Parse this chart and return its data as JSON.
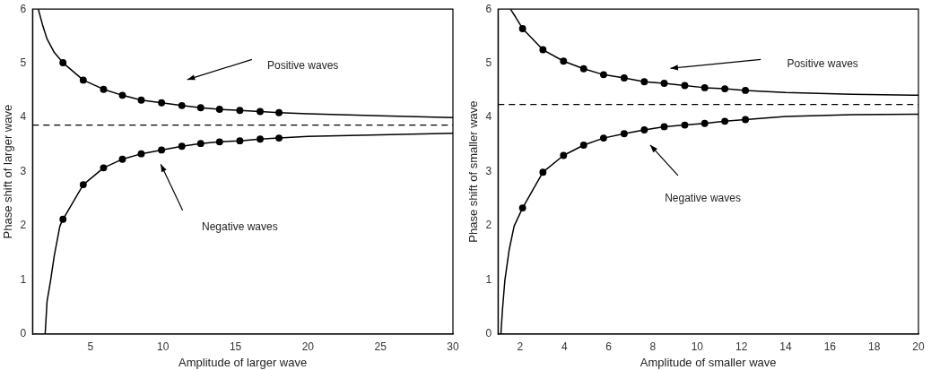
{
  "chart_data": [
    {
      "type": "line",
      "xlabel": "Amplitude of larger wave",
      "ylabel": "Phase shift of larger wave",
      "xlim": [
        1,
        30
      ],
      "xticks": [
        5,
        10,
        15,
        20,
        25,
        30
      ],
      "ylim": [
        0,
        6
      ],
      "yticks": [
        0,
        1,
        2,
        3,
        4,
        5,
        6
      ],
      "grid": false,
      "legend": false,
      "series": [
        {
          "marker": "none",
          "color": "#000000",
          "x": [
            1.4,
            1.7,
            2,
            2.5,
            3.1,
            4.5,
            5.9,
            7.2,
            8.5,
            9.9,
            11.3,
            12.6,
            13.9,
            15.3,
            16.7,
            18.0,
            20,
            25,
            30
          ],
          "values": [
            6,
            5.7,
            5.45,
            5.2,
            5.01,
            4.69,
            4.52,
            4.41,
            4.32,
            4.27,
            4.22,
            4.18,
            4.15,
            4.13,
            4.11,
            4.09,
            4.07,
            4.03,
            4.0
          ]
        },
        {
          "type": "scatter",
          "marker": "circle",
          "color": "#000000",
          "x": [
            3.1,
            4.5,
            5.9,
            7.2,
            8.5,
            9.9,
            11.3,
            12.6,
            13.9,
            15.3,
            16.7,
            18.0
          ],
          "values": [
            5.01,
            4.69,
            4.52,
            4.41,
            4.32,
            4.27,
            4.22,
            4.18,
            4.15,
            4.13,
            4.11,
            4.09
          ]
        },
        {
          "marker": "none",
          "color": "#000000",
          "x": [
            1.87,
            2,
            2.25,
            2.5,
            2.89,
            3.1,
            4.5,
            5.9,
            7.2,
            8.5,
            9.9,
            11.3,
            12.6,
            13.9,
            15.3,
            16.7,
            18.0,
            20,
            25,
            30
          ],
          "values": [
            0,
            0.6,
            1.0,
            1.45,
            2.0,
            2.12,
            2.76,
            3.07,
            3.23,
            3.33,
            3.4,
            3.47,
            3.52,
            3.55,
            3.57,
            3.6,
            3.62,
            3.65,
            3.68,
            3.71
          ]
        },
        {
          "type": "scatter",
          "marker": "circle",
          "color": "#000000",
          "x": [
            3.1,
            4.5,
            5.9,
            7.2,
            8.5,
            9.9,
            11.3,
            12.6,
            13.9,
            15.3,
            16.7,
            18.0
          ],
          "values": [
            2.12,
            2.76,
            3.07,
            3.23,
            3.33,
            3.4,
            3.47,
            3.52,
            3.55,
            3.57,
            3.6,
            3.62
          ]
        }
      ],
      "ref_lines": [
        {
          "axis": "y",
          "value": 3.86,
          "color": "#000000",
          "line_style": "dashed"
        }
      ],
      "annotations": [
        "Positive waves",
        "Negative waves"
      ]
    },
    {
      "type": "line",
      "xlabel": "Amplitude of smaller wave",
      "ylabel": "Phase shift of smaller wave",
      "xlim": [
        1,
        20
      ],
      "xticks": [
        2,
        4,
        6,
        8,
        10,
        12,
        14,
        16,
        18,
        20
      ],
      "ylim": [
        0,
        6
      ],
      "yticks": [
        0,
        1,
        2,
        3,
        4,
        5,
        6
      ],
      "grid": false,
      "legend": false,
      "series": [
        {
          "marker": "none",
          "color": "#000000",
          "x": [
            1.56,
            1.8,
            2.11,
            3.03,
            3.96,
            4.87,
            5.77,
            6.7,
            7.61,
            8.51,
            9.44,
            10.34,
            11.25,
            12.18,
            14,
            17,
            20
          ],
          "values": [
            6,
            5.85,
            5.64,
            5.25,
            5.04,
            4.9,
            4.79,
            4.73,
            4.66,
            4.63,
            4.59,
            4.55,
            4.53,
            4.5,
            4.46,
            4.43,
            4.41
          ]
        },
        {
          "type": "scatter",
          "marker": "circle",
          "color": "#000000",
          "x": [
            2.11,
            3.03,
            3.96,
            4.87,
            5.77,
            6.7,
            7.61,
            8.51,
            9.44,
            10.34,
            11.25,
            12.18
          ],
          "values": [
            5.64,
            5.25,
            5.04,
            4.9,
            4.79,
            4.73,
            4.66,
            4.63,
            4.59,
            4.55,
            4.53,
            4.5
          ]
        },
        {
          "marker": "none",
          "color": "#000000",
          "x": [
            1.13,
            1.2,
            1.31,
            1.5,
            1.73,
            2.11,
            3.03,
            3.96,
            4.87,
            5.77,
            6.7,
            7.61,
            8.51,
            9.44,
            10.34,
            11.25,
            12.18,
            14,
            17,
            20
          ],
          "values": [
            0,
            0.45,
            1.0,
            1.55,
            2.0,
            2.33,
            2.99,
            3.3,
            3.49,
            3.62,
            3.7,
            3.77,
            3.83,
            3.86,
            3.89,
            3.93,
            3.96,
            4.02,
            4.05,
            4.06
          ]
        },
        {
          "type": "scatter",
          "marker": "circle",
          "color": "#000000",
          "x": [
            2.11,
            3.03,
            3.96,
            4.87,
            5.77,
            6.7,
            7.61,
            8.51,
            9.44,
            10.34,
            11.25,
            12.18
          ],
          "values": [
            2.33,
            2.99,
            3.3,
            3.49,
            3.62,
            3.7,
            3.77,
            3.83,
            3.86,
            3.89,
            3.93,
            3.96
          ]
        }
      ],
      "ref_lines": [
        {
          "axis": "y",
          "value": 4.24,
          "color": "#000000",
          "line_style": "dashed"
        }
      ],
      "annotations": [
        "Positive waves",
        "Negative waves"
      ]
    }
  ]
}
